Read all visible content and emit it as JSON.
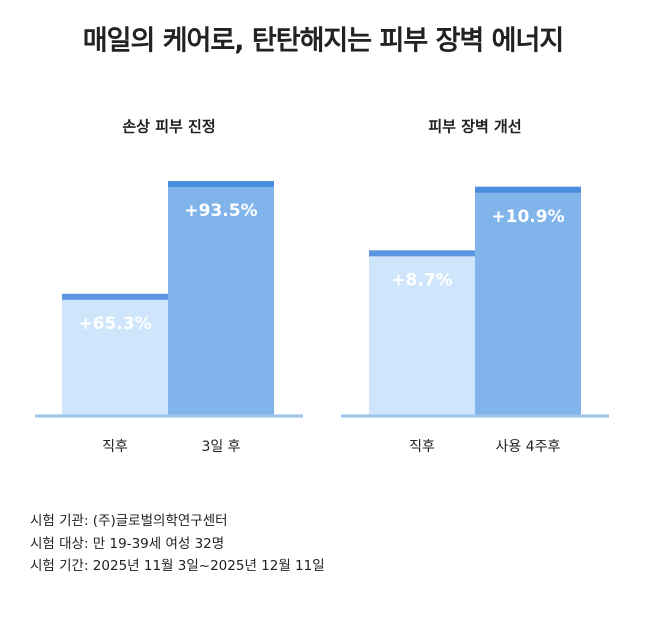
{
  "title": "매일의 케어로, 탄탄해지는 피부 장벽 에너지",
  "chart_data": [
    {
      "type": "bar",
      "title": "손상 피부 진정",
      "categories": [
        "직후",
        "3일 후"
      ],
      "values": [
        65.3,
        93.5
      ],
      "value_labels": [
        "+65.3%",
        "+93.5%"
      ],
      "colors": [
        "#cfe5fb",
        "#82b4ec"
      ],
      "ylim": [
        35,
        100
      ]
    },
    {
      "type": "bar",
      "title": "피부 장벽 개선",
      "categories": [
        "직후",
        "사용 4주후"
      ],
      "values": [
        8.7,
        10.9
      ],
      "value_labels": [
        "+8.7%",
        "+10.9%"
      ],
      "colors": [
        "#cfe5fb",
        "#82b4ec"
      ],
      "ylim": [
        3,
        12
      ]
    }
  ],
  "notes": [
    "시험 기관: (주)글로벌의학연구센터",
    "시험 대상: 만 19-39세 여성 32명",
    "시험 기간: 2025년 11월 3일~2025년 12월 11일"
  ]
}
